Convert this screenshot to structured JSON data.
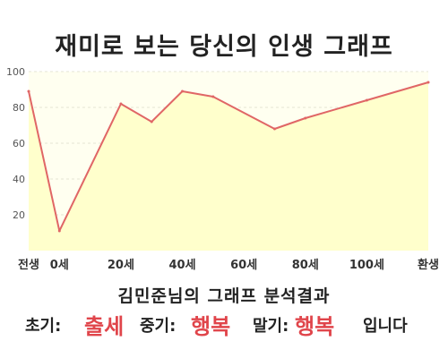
{
  "header": {
    "title": "재미로 보는 당신의 인생 그래프"
  },
  "chart_data": {
    "type": "area",
    "title": "재미로 보는 당신의 인생 그래프",
    "xlabel": "",
    "ylabel": "",
    "x": [
      -10,
      0,
      20,
      30,
      40,
      50,
      70,
      80,
      100,
      120
    ],
    "values": [
      89,
      11,
      82,
      72,
      89,
      86,
      68,
      74,
      84,
      94
    ],
    "xlim": [
      -10,
      120
    ],
    "ylim": [
      0,
      100
    ],
    "x_ticks": [
      {
        "value": -10,
        "label": "전생"
      },
      {
        "value": 0,
        "label": "0세"
      },
      {
        "value": 20,
        "label": "20세"
      },
      {
        "value": 40,
        "label": "40세"
      },
      {
        "value": 60,
        "label": "60세"
      },
      {
        "value": 80,
        "label": "80세"
      },
      {
        "value": 100,
        "label": "100세"
      },
      {
        "value": 120,
        "label": "환생"
      }
    ],
    "y_ticks": [
      20,
      40,
      60,
      80,
      100
    ],
    "grid": true,
    "colors": {
      "line": "#e06666",
      "fill": "#ffffcc",
      "plot_bg": "#fffff0",
      "grid": "#e4e4d4"
    }
  },
  "analysis": {
    "title": "김민준님의 그래프 분석결과",
    "early_label": "초기:",
    "early_value": "출세",
    "mid_label": "중기:",
    "mid_value": "행복",
    "late_label": "말기:",
    "late_value": "행복",
    "suffix": "입니다"
  }
}
